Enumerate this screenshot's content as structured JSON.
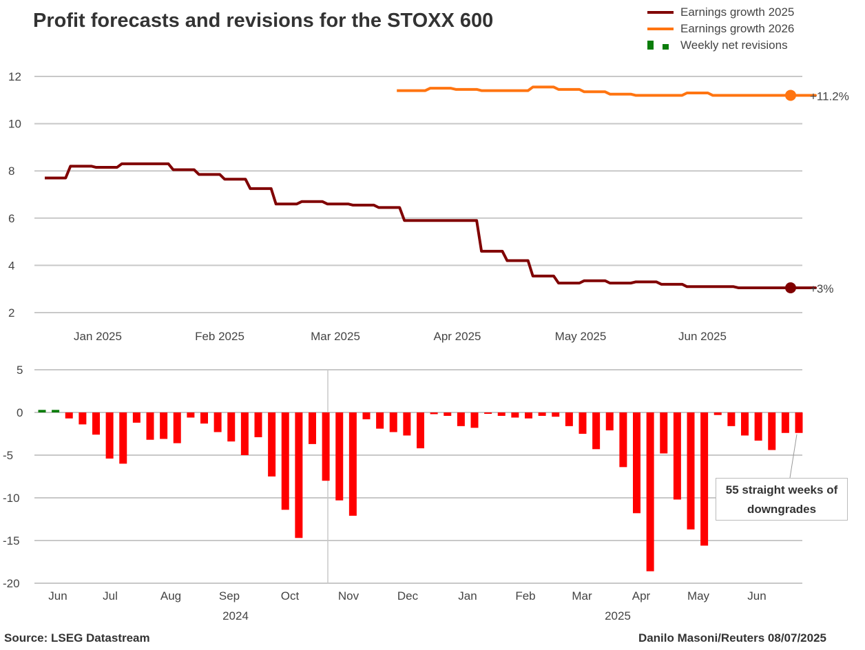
{
  "title": "Profit forecasts and revisions for the STOXX 600",
  "legend": [
    {
      "label": "Earnings growth 2025",
      "color": "#800000"
    },
    {
      "label": "Earnings growth 2026",
      "color": "#ff7410"
    },
    {
      "label": "Weekly net revisions",
      "color": "#0a7d0a"
    }
  ],
  "footer": {
    "source": "Source: LSEG Datastream",
    "credit": "Danilo Masoni/Reuters 08/07/2025"
  },
  "chart_data": [
    {
      "type": "line",
      "step": true,
      "ylim": [
        2,
        12
      ],
      "yticks": [
        2,
        4,
        6,
        8,
        10,
        12
      ],
      "xticks": [
        "Jan 2025",
        "Feb 2025",
        "Mar 2025",
        "Apr 2025",
        "May 2025",
        "Jun 2025"
      ],
      "grid": true,
      "series": [
        {
          "name": "Earnings growth 2025",
          "color": "#800000",
          "frequency": "weekly",
          "end_label": "+3%",
          "values": [
            7.7,
            8.2,
            8.15,
            8.3,
            8.3,
            8.05,
            7.85,
            7.65,
            7.25,
            6.6,
            6.7,
            6.6,
            6.55,
            6.45,
            5.9,
            5.9,
            5.9,
            4.6,
            4.2,
            3.55,
            3.25,
            3.35,
            3.25,
            3.3,
            3.2,
            3.1,
            3.1,
            3.05,
            3.05,
            3.05,
            3.05
          ]
        },
        {
          "name": "Earnings growth 2026",
          "color": "#ff7410",
          "frequency": "weekly",
          "end_label": "+11.2%",
          "values": [
            11.4,
            11.5,
            11.45,
            11.4,
            11.4,
            11.55,
            11.45,
            11.35,
            11.25,
            11.2,
            11.2,
            11.3,
            11.2,
            11.2,
            11.2,
            11.2,
            11.2
          ]
        }
      ]
    },
    {
      "type": "bar",
      "ylim": [
        -20,
        5
      ],
      "yticks": [
        5,
        0,
        -5,
        -10,
        -15,
        -20
      ],
      "xticks": [
        "Jun",
        "Jul",
        "Aug",
        "Sep",
        "Oct",
        "Nov",
        "Dec",
        "Jan",
        "Feb",
        "Mar",
        "Apr",
        "May",
        "Jun"
      ],
      "year_labels": [
        "2024",
        "2025"
      ],
      "grid": true,
      "series": [
        {
          "name": "Weekly net revisions",
          "positive_color": "#0a7d0a",
          "negative_color": "#ff0000",
          "values": [
            0.3,
            0.3,
            -0.7,
            -1.4,
            -2.6,
            -5.4,
            -6.0,
            -1.2,
            -3.2,
            -3.1,
            -3.6,
            -0.6,
            -1.3,
            -2.3,
            -3.4,
            -5.0,
            -2.9,
            -7.5,
            -11.4,
            -14.7,
            -3.7,
            -8.0,
            -10.3,
            -12.1,
            -0.8,
            -1.9,
            -2.3,
            -2.7,
            -4.2,
            -0.2,
            -0.4,
            -1.6,
            -1.8,
            -0.1,
            -0.4,
            -0.6,
            -0.7,
            -0.4,
            -0.5,
            -1.6,
            -2.5,
            -4.3,
            -2.1,
            -6.4,
            -11.8,
            -18.6,
            -4.8,
            -10.2,
            -13.7,
            -15.6,
            -0.3,
            -1.6,
            -2.7,
            -3.3,
            -4.4,
            -2.4,
            -2.4
          ]
        }
      ],
      "annotation": "55 straight weeks of downgrades"
    }
  ]
}
